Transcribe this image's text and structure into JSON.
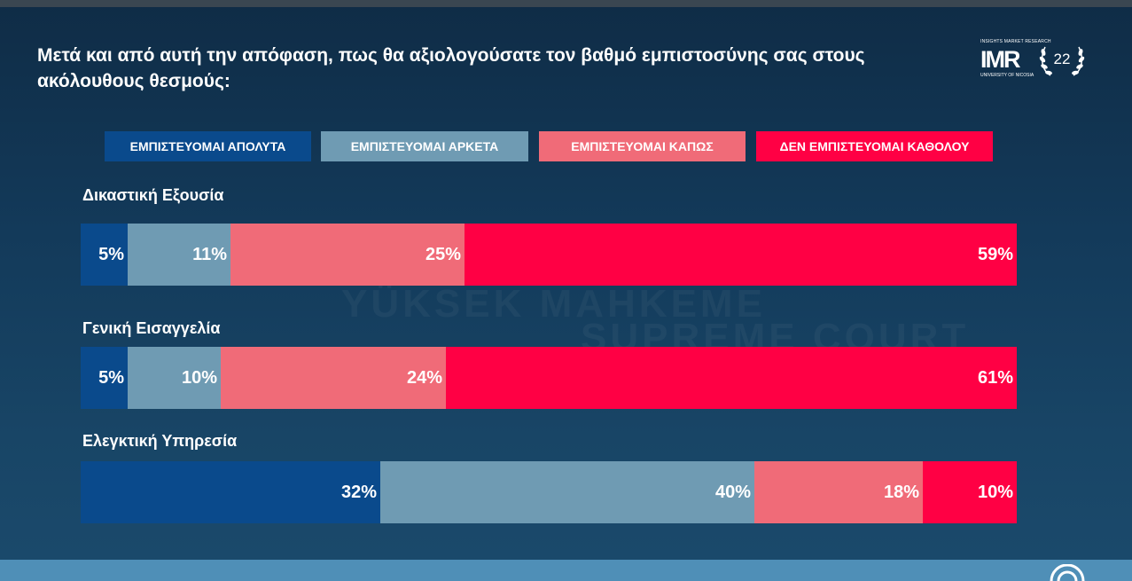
{
  "title": "Μετά και από αυτή την απόφαση, πως θα αξιολογούσατε τον βαθμό εμπιστοσύνης σας στους ακόλουθους θεσμούς:",
  "logo": {
    "tagline": "INSIGHTS MARKET RESEARCH",
    "brand": "IMR",
    "university": "UNIVERSITY OF NICOSIA",
    "years": "22"
  },
  "background_text": [
    "YÜKSEK MAHKEME",
    "SUPREME COURT"
  ],
  "colors": {
    "absolutely": "#0a4a8c",
    "quite": "#6f9bb3",
    "somewhat": "#f06b78",
    "not_at_all": "#ff0044"
  },
  "chart_data": {
    "type": "bar",
    "orientation": "horizontal",
    "stacked": true,
    "unit": "%",
    "legend_position": "top",
    "categories": [
      "Δικαστική Εξουσία",
      "Γενική Εισαγγελία",
      "Ελεγκτική Υπηρεσία"
    ],
    "series": [
      {
        "name": "ΕΜΠΙΣΤΕΥΟΜΑΙ ΑΠΟΛΥΤΑ",
        "color": "#0a4a8c",
        "values": [
          5,
          5,
          32
        ]
      },
      {
        "name": "ΕΜΠΙΣΤΕΥΟΜΑΙ ΑΡΚΕΤΑ",
        "color": "#6f9bb3",
        "values": [
          11,
          10,
          40
        ]
      },
      {
        "name": "ΕΜΠΙΣΤΕΥΟΜΑΙ ΚΑΠΩΣ",
        "color": "#f06b78",
        "values": [
          25,
          24,
          18
        ]
      },
      {
        "name": "ΔΕΝ ΕΜΠΙΣΤΕΥΟΜΑΙ ΚΑΘΟΛΟΥ",
        "color": "#ff0044",
        "values": [
          59,
          61,
          10
        ]
      }
    ]
  }
}
